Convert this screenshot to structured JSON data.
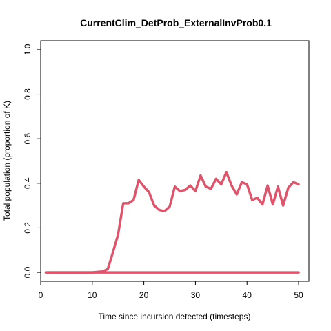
{
  "chart_data": {
    "type": "line",
    "title": "CurrentClim_DetProb_ExternalInvProb0.1",
    "xlabel": "Time since incursion detected (timesteps)",
    "ylabel": "Total population (proportion of K)",
    "xlim": [
      0,
      52
    ],
    "ylim": [
      -0.04,
      1.04
    ],
    "xticks": [
      0,
      10,
      20,
      30,
      40,
      50
    ],
    "yticks": [
      0.0,
      0.2,
      0.4,
      0.6,
      0.8,
      1.0
    ],
    "xtick_labels": [
      "0",
      "10",
      "20",
      "30",
      "40",
      "50"
    ],
    "ytick_labels": [
      "0.0",
      "0.2",
      "0.4",
      "0.6",
      "0.8",
      "1.0"
    ],
    "grid": false,
    "line_color": "#DF536B",
    "series": [
      {
        "x": [
          1,
          2,
          3,
          4,
          5,
          6,
          7,
          8,
          9,
          10,
          11,
          12,
          13,
          14,
          15,
          16,
          17,
          18,
          19,
          20,
          21,
          22,
          23,
          24,
          25,
          26,
          27,
          28,
          29,
          30,
          31,
          32,
          33,
          34,
          35,
          36,
          37,
          38,
          39,
          40,
          41,
          42,
          43,
          44,
          45,
          46,
          47,
          48,
          49,
          50
        ],
        "values": [
          0,
          0,
          0,
          0,
          0,
          0,
          0,
          0,
          0,
          0,
          0.002,
          0.004,
          0.015,
          0.09,
          0.17,
          0.31,
          0.31,
          0.325,
          0.415,
          0.385,
          0.36,
          0.3,
          0.28,
          0.275,
          0.295,
          0.385,
          0.365,
          0.37,
          0.39,
          0.365,
          0.435,
          0.385,
          0.375,
          0.42,
          0.395,
          0.45,
          0.39,
          0.35,
          0.405,
          0.395,
          0.325,
          0.335,
          0.305,
          0.39,
          0.305,
          0.385,
          0.3,
          0.38,
          0.405,
          0.395
        ]
      },
      {
        "x": [
          1,
          50
        ],
        "values": [
          0,
          0
        ]
      }
    ]
  }
}
